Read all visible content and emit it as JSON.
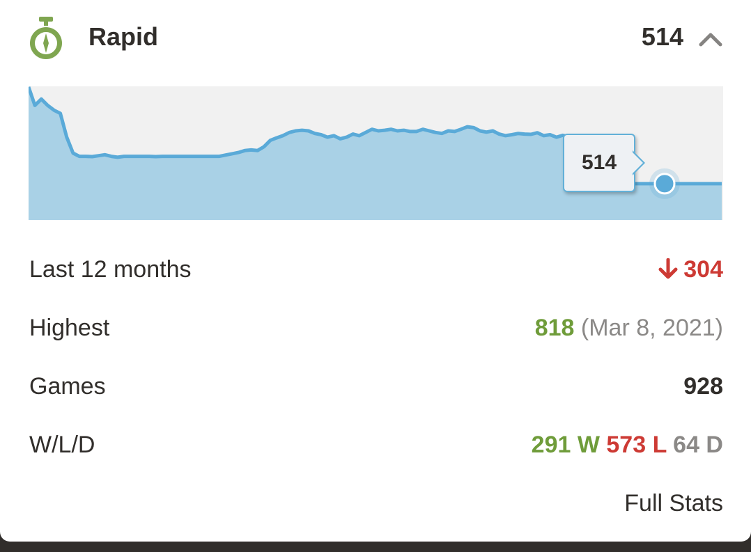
{
  "header": {
    "mode_icon": "stopwatch-icon",
    "title": "Rapid",
    "rating": "514",
    "toggle_icon": "chevron-up-icon"
  },
  "chart_data": {
    "type": "area",
    "title": "",
    "xlabel": "",
    "ylabel": "",
    "current_value": 514,
    "tooltip_label": "514",
    "y_range": [
      400,
      820
    ],
    "line_color": "#5aaad8",
    "fill_color": "#a9d1e6",
    "background_color": "#f1f1f1",
    "values": [
      818,
      760,
      780,
      760,
      745,
      735,
      660,
      610,
      600,
      600,
      599,
      602,
      605,
      600,
      597,
      600,
      600,
      600,
      600,
      600,
      599,
      600,
      600,
      600,
      600,
      600,
      600,
      600,
      600,
      600,
      600,
      604,
      608,
      612,
      618,
      620,
      618,
      630,
      650,
      658,
      665,
      675,
      680,
      682,
      680,
      672,
      668,
      660,
      665,
      655,
      660,
      670,
      665,
      675,
      685,
      680,
      682,
      685,
      680,
      682,
      678,
      678,
      685,
      680,
      675,
      672,
      680,
      678,
      685,
      693,
      690,
      680,
      676,
      680,
      670,
      665,
      668,
      672,
      670,
      669,
      674,
      665,
      668,
      660,
      666,
      662,
      664,
      514,
      514,
      514,
      514,
      514,
      514,
      514,
      514,
      514,
      514,
      514,
      514,
      514,
      514,
      514,
      514,
      514,
      514,
      514,
      514,
      514,
      514,
      514
    ]
  },
  "stats": {
    "last12": {
      "label": "Last 12 months",
      "value": "304",
      "icon": "arrow-down-icon"
    },
    "highest": {
      "label": "Highest",
      "value": "818",
      "date": "(Mar 8, 2021)"
    },
    "games": {
      "label": "Games",
      "value": "928"
    },
    "wld": {
      "label": "W/L/D",
      "wins": "291 W",
      "losses": "573 L",
      "draws": "64 D"
    }
  },
  "footer": {
    "full_stats_label": "Full Stats"
  },
  "colors": {
    "win_green": "#6f9c3a",
    "loss_red": "#cd3a34",
    "draw_grey": "#8b8987",
    "text_dark": "#312e2b",
    "page_bg": "#312e2b"
  }
}
